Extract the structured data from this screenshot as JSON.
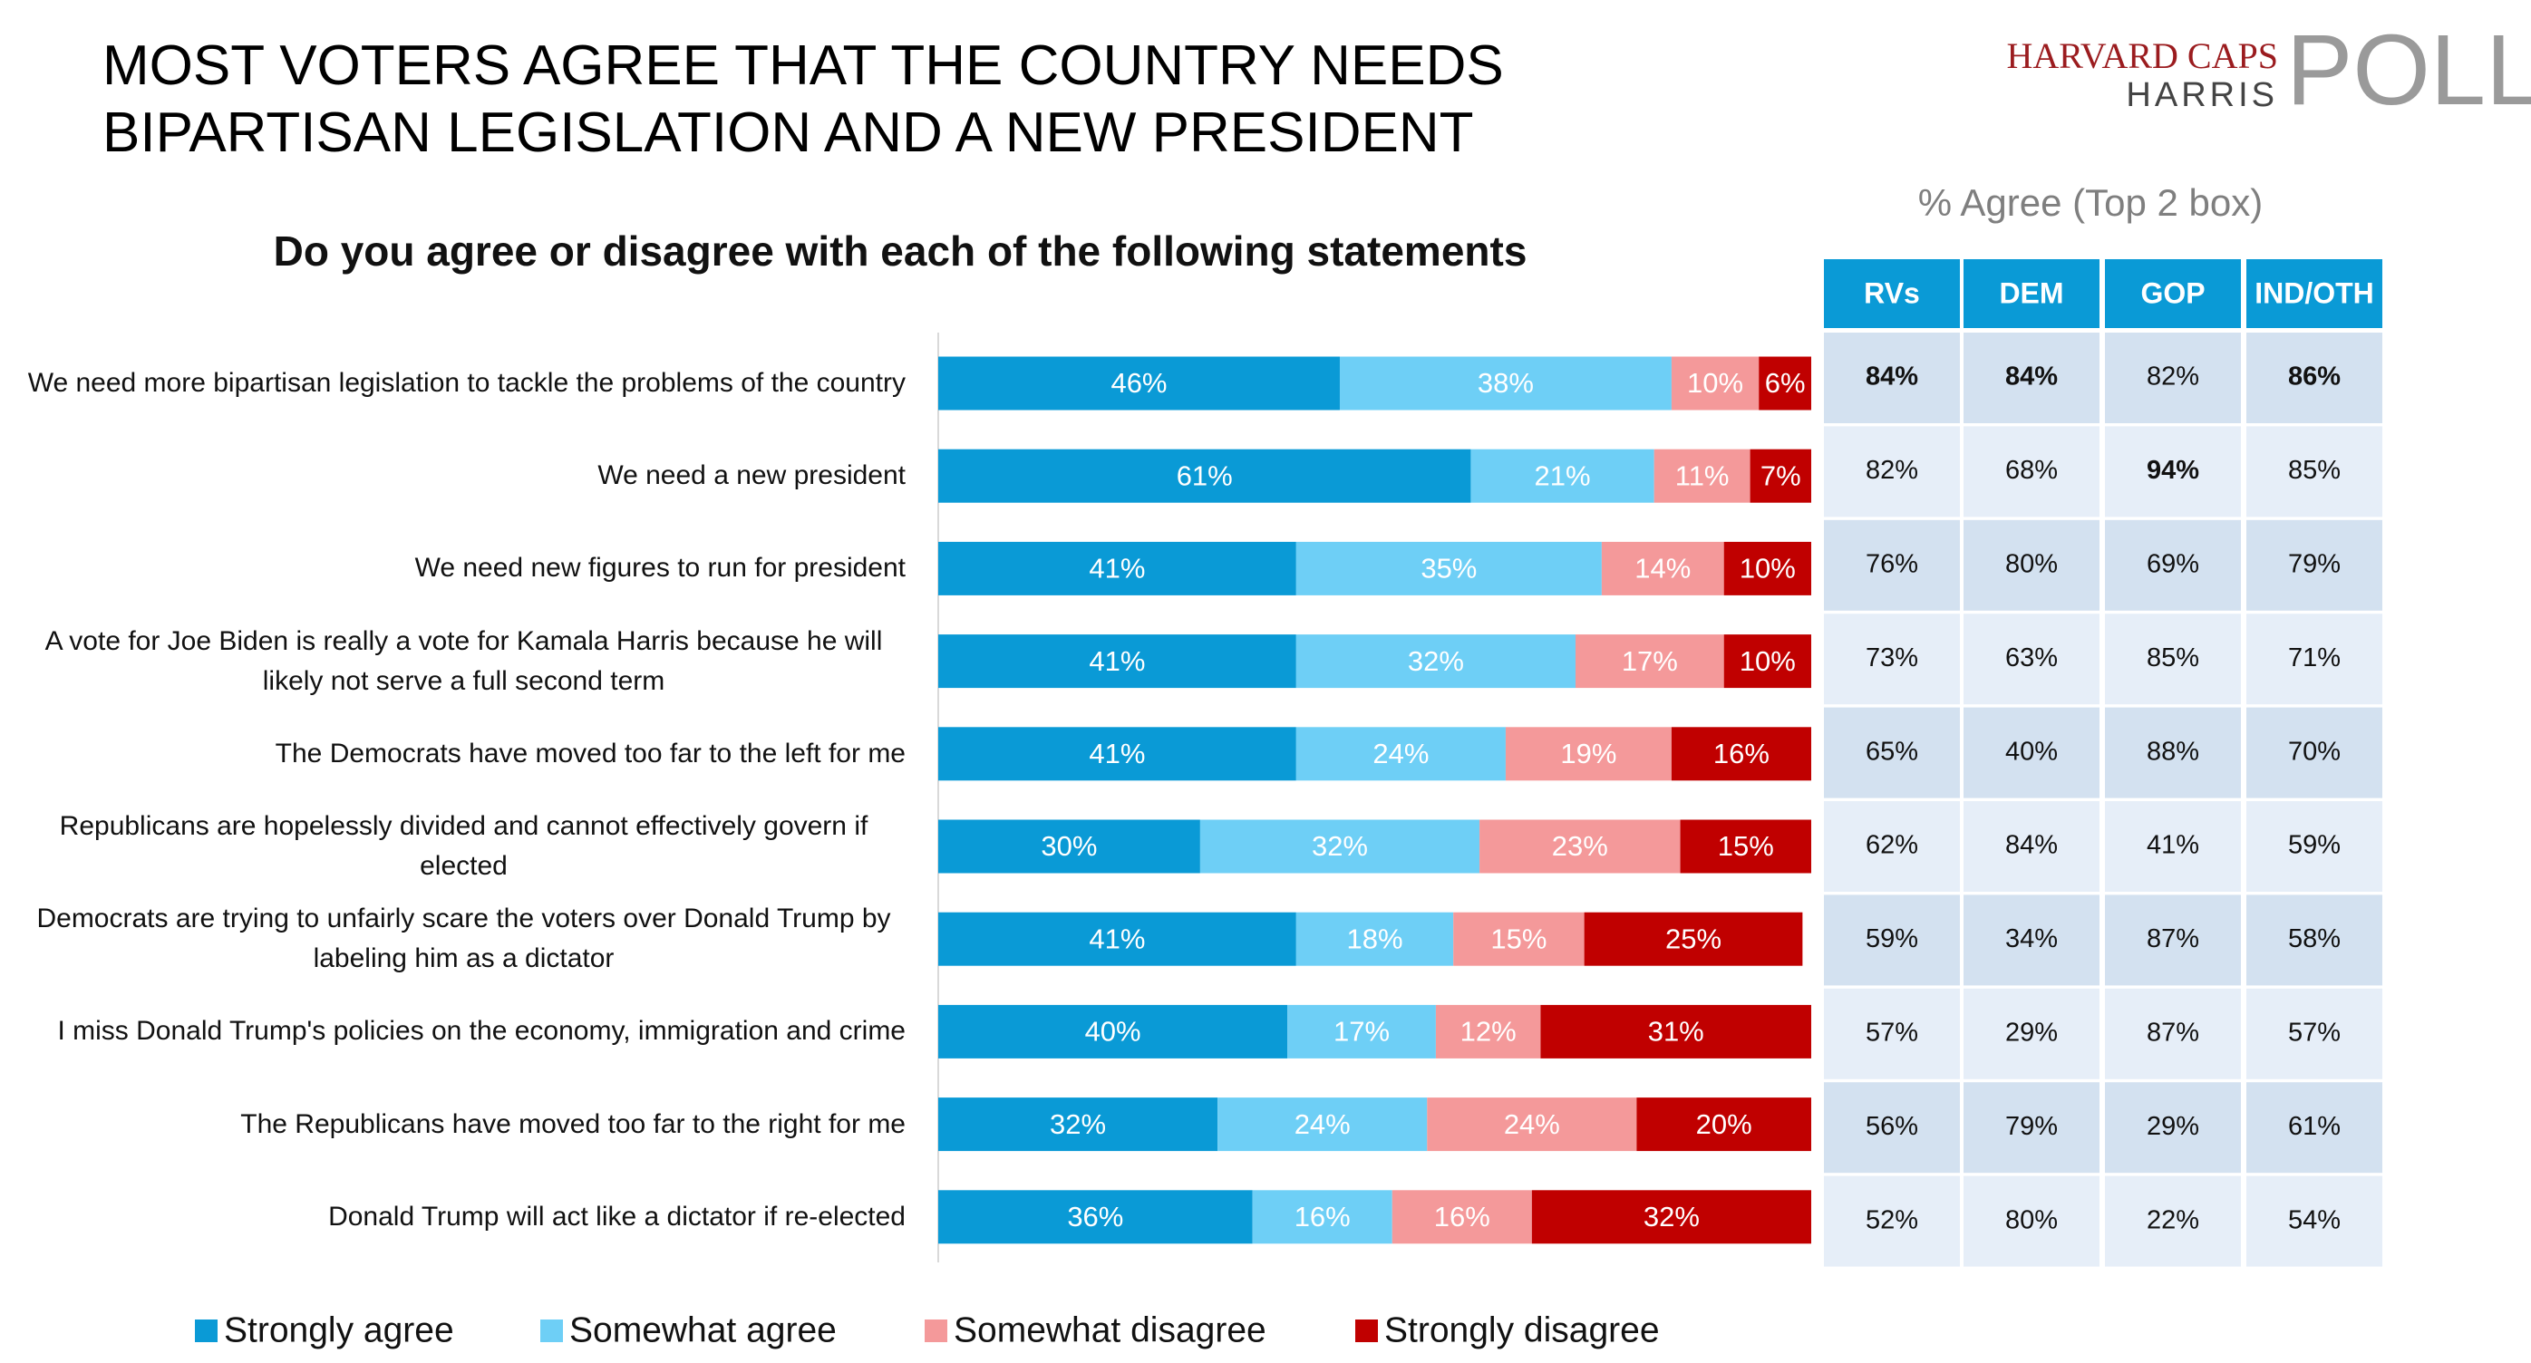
{
  "chart_data": {
    "type": "stacked-bar-horizontal",
    "title": "MOST VOTERS AGREE THAT THE COUNTRY NEEDS BIPARTISAN LEGISLATION AND A NEW PRESIDENT",
    "subtitle": "Do you agree or disagree with each of the following statements",
    "categories": [
      "We need more bipartisan legislation to tackle the problems of the country",
      "We need a new president",
      "We need new figures to run for president",
      "A vote for Joe Biden is really a vote for Kamala Harris because he will likely not serve a full second term",
      "The Democrats have moved too far to the left for me",
      "Republicans are hopelessly divided and cannot effectively govern if elected",
      "Democrats are trying to unfairly scare the voters over Donald Trump by labeling him as a dictator",
      "I miss Donald Trump's policies on the economy, immigration and crime",
      "The Republicans have moved too far to the right for me",
      "Donald Trump will act like a dictator if re-elected"
    ],
    "xlim": [
      0,
      100
    ],
    "series": [
      {
        "name": "Strongly agree",
        "color": "#0a9ad6",
        "values": [
          46,
          61,
          41,
          41,
          41,
          30,
          41,
          40,
          32,
          36
        ],
        "value_labels": [
          "46%",
          "61%",
          "41%",
          "41%",
          "41%",
          "30%",
          "41%",
          "40%",
          "32%",
          "36%"
        ]
      },
      {
        "name": "Somewhat agree",
        "color": "#6ecff6",
        "values": [
          38,
          21,
          35,
          32,
          24,
          32,
          18,
          17,
          24,
          16
        ],
        "value_labels": [
          "38%",
          "21%",
          "35%",
          "32%",
          "24%",
          "32%",
          "18%",
          "17%",
          "24%",
          "16%"
        ]
      },
      {
        "name": "Somewhat disagree",
        "color": "#f4999a",
        "values": [
          10,
          11,
          14,
          17,
          19,
          23,
          15,
          12,
          24,
          16
        ],
        "value_labels": [
          "10%",
          "11%",
          "14%",
          "17%",
          "19%",
          "23%",
          "15%",
          "12%",
          "24%",
          "16%"
        ]
      },
      {
        "name": "Strongly disagree",
        "color": "#c00000",
        "values": [
          6,
          7,
          10,
          10,
          16,
          15,
          25,
          31,
          20,
          32
        ],
        "value_labels": [
          "6%",
          "7%",
          "10%",
          "10%",
          "16%",
          "15%",
          "25%",
          "31%",
          "20%",
          "32%"
        ]
      }
    ]
  },
  "table": {
    "title": "% Agree (Top 2 box)",
    "columns": [
      "RVs",
      "DEM",
      "GOP",
      "IND/OTH"
    ],
    "rows": [
      [
        "84%",
        "84%",
        "82%",
        "86%"
      ],
      [
        "82%",
        "68%",
        "94%",
        "85%"
      ],
      [
        "76%",
        "80%",
        "69%",
        "79%"
      ],
      [
        "73%",
        "63%",
        "85%",
        "71%"
      ],
      [
        "65%",
        "40%",
        "88%",
        "70%"
      ],
      [
        "62%",
        "84%",
        "41%",
        "59%"
      ],
      [
        "59%",
        "34%",
        "87%",
        "58%"
      ],
      [
        "57%",
        "29%",
        "87%",
        "57%"
      ],
      [
        "56%",
        "79%",
        "29%",
        "61%"
      ],
      [
        "52%",
        "80%",
        "22%",
        "54%"
      ]
    ],
    "bold_cells": [
      [
        0,
        0
      ],
      [
        0,
        1
      ],
      [
        0,
        3
      ],
      [
        1,
        2
      ]
    ]
  },
  "logo": {
    "line1": "HARVARD CAPS",
    "line2": "HARRIS",
    "word": "POLL"
  }
}
